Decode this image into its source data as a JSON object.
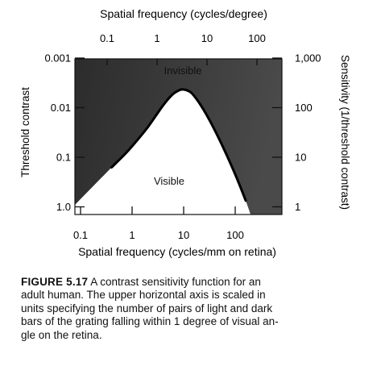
{
  "chart_data": {
    "type": "line",
    "top_axis_label": "Spatial frequency (cycles/degree)",
    "top_ticks": [
      "0.1",
      "1",
      "10",
      "100"
    ],
    "xlabel": "Spatial frequency (cycles/mm on retina)",
    "x_ticks": [
      "0.1",
      "1",
      "10",
      "100"
    ],
    "x_scale": "log",
    "xlim": [
      0.05,
      300
    ],
    "ylabel": "Threshold contrast",
    "y_ticks": [
      "0.001",
      "0.01",
      "0.1",
      "1.0"
    ],
    "y_scale": "log",
    "y_inverted": true,
    "ylim": [
      0.001,
      1
    ],
    "y2label": "Sensitivity (1/threshold contrast)",
    "y2_ticks": [
      "1,000",
      "100",
      "10",
      "1"
    ],
    "region_labels": {
      "above_curve": "Invisible",
      "below_curve": "Visible"
    },
    "series": [
      {
        "x": [
          0.4,
          0.7,
          1,
          2,
          4,
          6,
          8,
          10,
          14,
          20,
          30,
          50,
          80,
          120,
          160
        ],
        "y": [
          0.16,
          0.09,
          0.06,
          0.025,
          0.009,
          0.0055,
          0.0045,
          0.0043,
          0.005,
          0.008,
          0.016,
          0.045,
          0.13,
          0.35,
          0.75
        ]
      }
    ],
    "colors": {
      "invisible_region": "#3a3a3a",
      "visible_region": "#ffffff",
      "curve": "#000000"
    }
  },
  "caption": {
    "label": "FIGURE 5.17",
    "lines": [
      "A contrast sensitivity function for an",
      "adult human. The upper horizontal axis is scaled in",
      "units specifying the number of pairs of light and dark",
      "bars of the grating falling within 1 degree of visual an-",
      "gle on the retina."
    ]
  }
}
